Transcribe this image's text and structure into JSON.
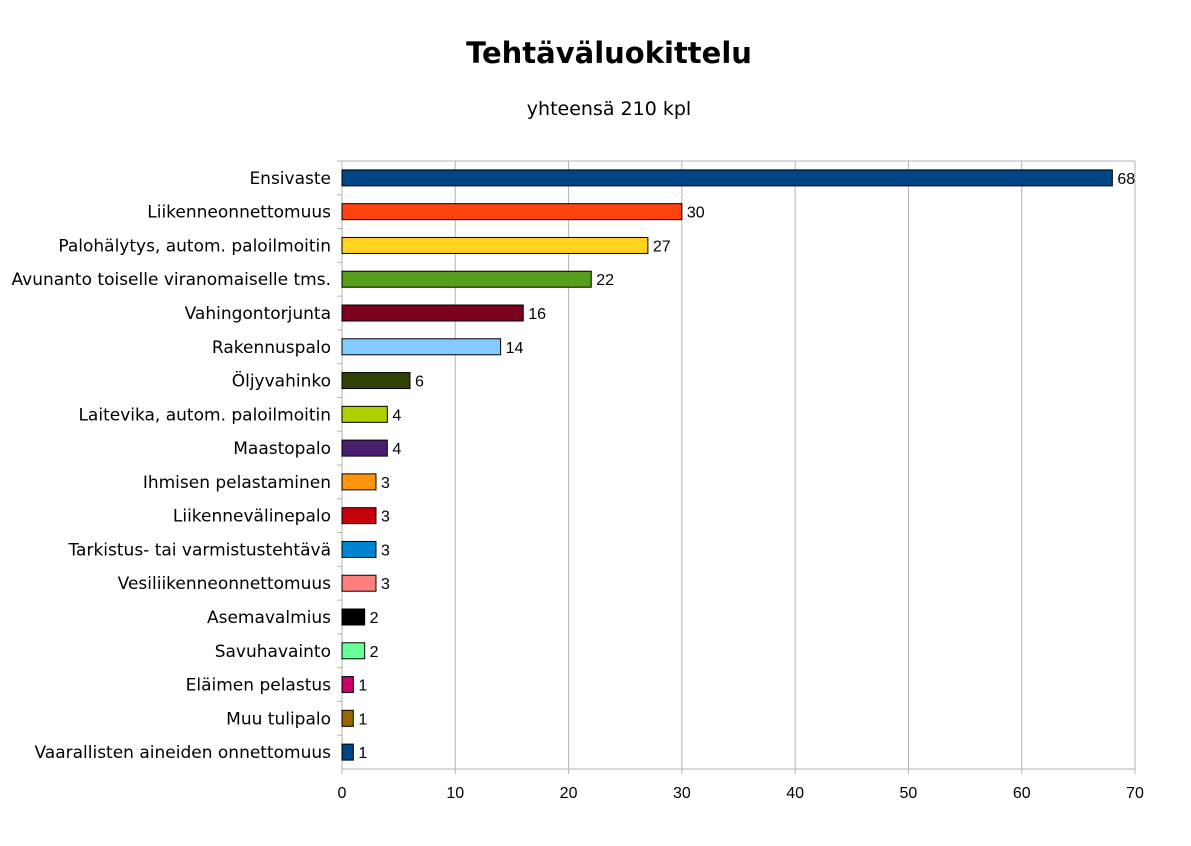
{
  "chart_data": {
    "type": "bar",
    "orientation": "horizontal",
    "title": "Tehtäväluokittelu",
    "subtitle": "yhteensä 210 kpl",
    "categories": [
      "Ensivaste",
      "Liikenneonnettomuus",
      "Palohälytys, autom. paloilmoitin",
      "Avunanto toiselle viranomaiselle tms.",
      "Vahingontorjunta",
      "Rakennuspalo",
      "Öljyvahinko",
      "Laitevika, autom. paloilmoitin",
      "Maastopalo",
      "Ihmisen pelastaminen",
      "Liikennevälinepalo",
      "Tarkistus- tai varmistustehtävä",
      "Vesiliikenneonnettomuus",
      "Asemavalmius",
      "Savuhavainto",
      "Eläimen pelastus",
      "Muu tulipalo",
      "Vaarallisten aineiden onnettomuus"
    ],
    "values": [
      68,
      30,
      27,
      22,
      16,
      14,
      6,
      4,
      4,
      3,
      3,
      3,
      3,
      2,
      2,
      1,
      1,
      1
    ],
    "colors": [
      "#004586",
      "#ff420e",
      "#ffd320",
      "#579d1c",
      "#7e0021",
      "#83caff",
      "#314004",
      "#aecf00",
      "#4b1f6f",
      "#ff950e",
      "#c5000b",
      "#0084d1",
      "#ff7f7f",
      "#000000",
      "#66ff99",
      "#cc0066",
      "#996600",
      "#004586"
    ],
    "xlim": [
      0,
      70
    ],
    "xticks": [
      0,
      10,
      20,
      30,
      40,
      50,
      60,
      70
    ],
    "grid": true,
    "legend": "none"
  }
}
